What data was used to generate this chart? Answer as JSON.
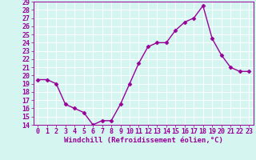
{
  "x": [
    0,
    1,
    2,
    3,
    4,
    5,
    6,
    7,
    8,
    9,
    10,
    11,
    12,
    13,
    14,
    15,
    16,
    17,
    18,
    19,
    20,
    21,
    22,
    23
  ],
  "y": [
    19.5,
    19.5,
    19.0,
    16.5,
    16.0,
    15.5,
    14.0,
    14.5,
    14.5,
    16.5,
    19.0,
    21.5,
    23.5,
    24.0,
    24.0,
    25.5,
    26.5,
    27.0,
    28.5,
    24.5,
    22.5,
    21.0,
    20.5,
    20.5
  ],
  "line_color": "#990099",
  "marker": "D",
  "markersize": 2.5,
  "linewidth": 1.0,
  "bg_color": "#d4f5f0",
  "grid_color": "#ffffff",
  "xlabel": "Windchill (Refroidissement éolien,°C)",
  "xlabel_fontsize": 6.5,
  "tick_fontsize": 6.0,
  "xlim": [
    -0.5,
    23.5
  ],
  "ylim": [
    14,
    29
  ],
  "yticks": [
    14,
    15,
    16,
    17,
    18,
    19,
    20,
    21,
    22,
    23,
    24,
    25,
    26,
    27,
    28,
    29
  ],
  "xticks": [
    0,
    1,
    2,
    3,
    4,
    5,
    6,
    7,
    8,
    9,
    10,
    11,
    12,
    13,
    14,
    15,
    16,
    17,
    18,
    19,
    20,
    21,
    22,
    23
  ]
}
